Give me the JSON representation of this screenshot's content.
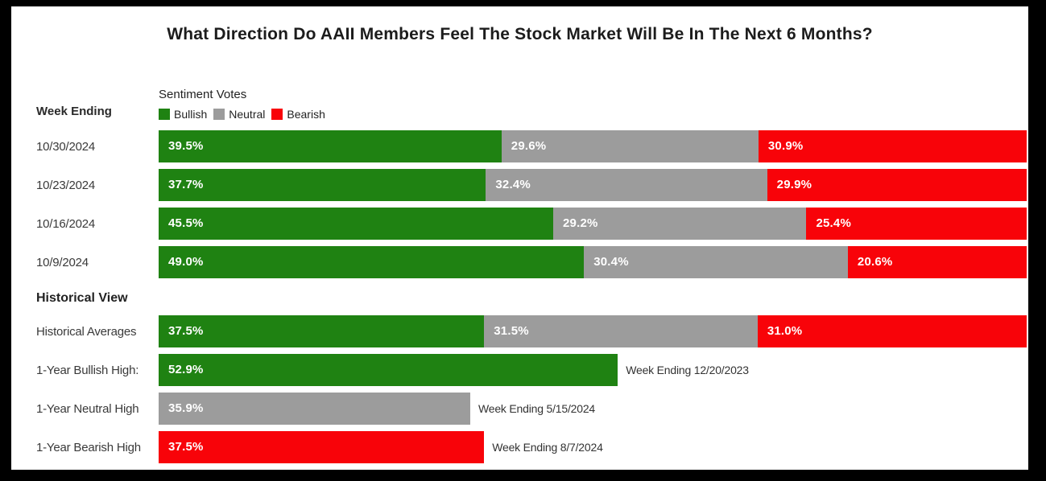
{
  "title": "What Direction Do AAII Members Feel The Stock Market Will Be In The Next 6 Months?",
  "labels": {
    "week_ending": "Week Ending",
    "historical_view": "Historical View"
  },
  "legend": {
    "title": "Sentiment Votes",
    "items": [
      {
        "key": "bullish",
        "label": "Bullish"
      },
      {
        "key": "neutral",
        "label": "Neutral"
      },
      {
        "key": "bearish",
        "label": "Bearish"
      }
    ]
  },
  "colors": {
    "bullish": "#1f8212",
    "neutral": "#9c9c9c",
    "bearish": "#f80309",
    "frame": "#000000",
    "panel": "#ffffff"
  },
  "chart_data": {
    "type": "bar",
    "orientation": "horizontal",
    "stacked": true,
    "unit": "%",
    "xlim": [
      0,
      100
    ],
    "grid": false,
    "legend_position": "top",
    "series_order": [
      "bullish",
      "neutral",
      "bearish"
    ],
    "weekly_rows": [
      {
        "label": "10/30/2024",
        "bullish": 39.5,
        "neutral": 29.6,
        "bearish": 30.9
      },
      {
        "label": "10/23/2024",
        "bullish": 37.7,
        "neutral": 32.4,
        "bearish": 29.9
      },
      {
        "label": "10/16/2024",
        "bullish": 45.5,
        "neutral": 29.2,
        "bearish": 25.4
      },
      {
        "label": "10/9/2024",
        "bullish": 49.0,
        "neutral": 30.4,
        "bearish": 20.6
      }
    ],
    "historical_average_row": {
      "label": "Historical Averages",
      "bullish": 37.5,
      "neutral": 31.5,
      "bearish": 31.0
    },
    "historical_extreme_rows": [
      {
        "label": "1-Year Bullish High:",
        "series": "bullish",
        "value": 52.9,
        "note": "Week Ending 12/20/2023"
      },
      {
        "label": "1-Year Neutral High",
        "series": "neutral",
        "value": 35.9,
        "note": "Week Ending 5/15/2024"
      },
      {
        "label": "1-Year Bearish High",
        "series": "bearish",
        "value": 37.5,
        "note": "Week Ending 8/7/2024"
      }
    ]
  }
}
